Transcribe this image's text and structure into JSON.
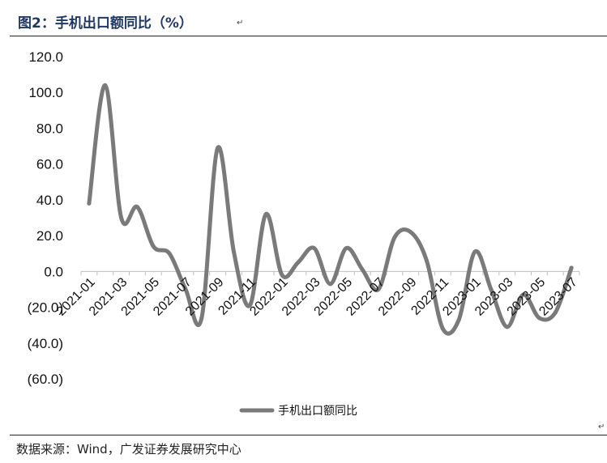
{
  "header": {
    "title": "图2：手机出口额同比（%）"
  },
  "source": {
    "text": "数据来源：Wind，广发证券发展研究中心"
  },
  "chart_data": {
    "type": "line",
    "title": "图2：手机出口额同比（%）",
    "xlabel": "",
    "ylabel": "",
    "ylim": [
      -60,
      120
    ],
    "y_ticks": [
      "120.0",
      "100.0",
      "80.0",
      "60.0",
      "40.0",
      "20.0",
      "0.0",
      "(20.0)",
      "(40.0)",
      "(60.0)"
    ],
    "x_tick_labels": [
      "2021-01",
      "2021-03",
      "2021-05",
      "2021-07",
      "2021-09",
      "2021-11",
      "2022-01",
      "2022-03",
      "2022-05",
      "2022-07",
      "2022-09",
      "2022-11",
      "2023-01",
      "2023-03",
      "2023-05",
      "2023-07"
    ],
    "grid": false,
    "legend_position": "bottom",
    "color": "#7a7a7a",
    "x": [
      "2021-01",
      "2021-02",
      "2021-03",
      "2021-04",
      "2021-05",
      "2021-06",
      "2021-07",
      "2021-08",
      "2021-09",
      "2021-10",
      "2021-11",
      "2021-12",
      "2022-01",
      "2022-02",
      "2022-03",
      "2022-04",
      "2022-05",
      "2022-06",
      "2022-07",
      "2022-08",
      "2022-09",
      "2022-10",
      "2022-11",
      "2022-12",
      "2023-01",
      "2023-02",
      "2023-03",
      "2023-04",
      "2023-05",
      "2023-06",
      "2023-07"
    ],
    "series": [
      {
        "name": "手机出口额同比",
        "values": [
          38.0,
          104.0,
          30.0,
          36.0,
          14.0,
          10.0,
          -10.0,
          -26.0,
          69.0,
          11.0,
          -19.0,
          32.0,
          -2.0,
          5.0,
          13.0,
          -7.0,
          13.0,
          1.0,
          -10.0,
          19.0,
          22.0,
          6.0,
          -32.0,
          -27.0,
          11.0,
          -10.0,
          -31.0,
          -13.0,
          -26.0,
          -23.0,
          2.0
        ]
      }
    ]
  }
}
